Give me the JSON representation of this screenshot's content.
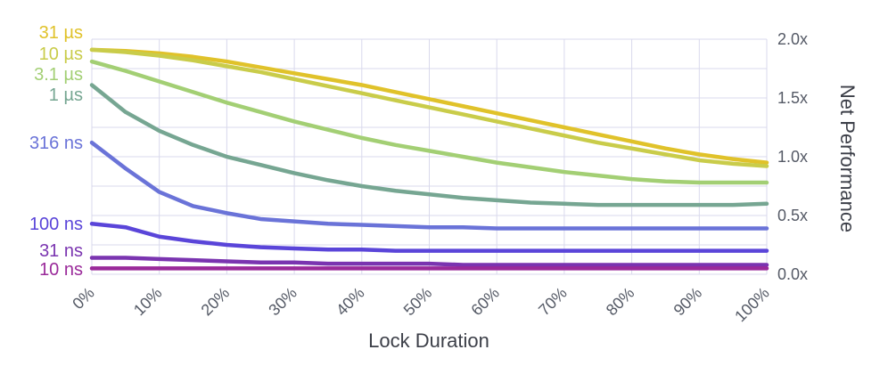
{
  "chart_data": {
    "type": "line",
    "title": "",
    "xlabel": "Lock Duration",
    "ylabel": "Net Performance",
    "x": [
      0,
      5,
      10,
      15,
      20,
      25,
      30,
      35,
      40,
      45,
      50,
      55,
      60,
      65,
      70,
      75,
      80,
      85,
      90,
      95,
      100
    ],
    "xticks": [
      "0%",
      "10%",
      "20%",
      "30%",
      "40%",
      "50%",
      "60%",
      "70%",
      "80%",
      "90%",
      "100%"
    ],
    "yticks": [
      "0.0x",
      "0.5x",
      "1.0x",
      "1.5x",
      "2.0x"
    ],
    "ylim": [
      0,
      2.0
    ],
    "xlim": [
      0,
      100
    ],
    "grid": true,
    "series": [
      {
        "name": "31 µs",
        "color": "#e0c22a",
        "values": [
          1.91,
          1.9,
          1.88,
          1.85,
          1.81,
          1.76,
          1.71,
          1.66,
          1.61,
          1.55,
          1.49,
          1.43,
          1.37,
          1.31,
          1.25,
          1.19,
          1.13,
          1.07,
          1.02,
          0.98,
          0.95
        ]
      },
      {
        "name": "10 µs",
        "color": "#c9cc4a",
        "values": [
          1.91,
          1.89,
          1.86,
          1.82,
          1.77,
          1.72,
          1.66,
          1.6,
          1.54,
          1.48,
          1.42,
          1.36,
          1.3,
          1.24,
          1.18,
          1.12,
          1.07,
          1.02,
          0.97,
          0.94,
          0.92
        ]
      },
      {
        "name": "3.1 µs",
        "color": "#a3cf74",
        "values": [
          1.81,
          1.73,
          1.64,
          1.55,
          1.46,
          1.38,
          1.3,
          1.23,
          1.16,
          1.1,
          1.05,
          1.0,
          0.95,
          0.91,
          0.87,
          0.84,
          0.81,
          0.79,
          0.78,
          0.78,
          0.78
        ]
      },
      {
        "name": "1 µs",
        "color": "#76a692",
        "values": [
          1.61,
          1.38,
          1.22,
          1.1,
          1.0,
          0.93,
          0.86,
          0.8,
          0.75,
          0.71,
          0.68,
          0.65,
          0.63,
          0.61,
          0.6,
          0.59,
          0.59,
          0.59,
          0.59,
          0.59,
          0.6
        ]
      },
      {
        "name": "316 ns",
        "color": "#6a73d8",
        "values": [
          1.12,
          0.9,
          0.7,
          0.58,
          0.52,
          0.47,
          0.45,
          0.43,
          0.42,
          0.41,
          0.4,
          0.4,
          0.39,
          0.39,
          0.39,
          0.39,
          0.39,
          0.39,
          0.39,
          0.39,
          0.39
        ]
      },
      {
        "name": "100 ns",
        "color": "#5a45d9",
        "values": [
          0.43,
          0.4,
          0.32,
          0.28,
          0.25,
          0.23,
          0.22,
          0.21,
          0.21,
          0.2,
          0.2,
          0.2,
          0.2,
          0.2,
          0.2,
          0.2,
          0.2,
          0.2,
          0.2,
          0.2,
          0.2
        ]
      },
      {
        "name": "31 ns",
        "color": "#7a34b0",
        "values": [
          0.14,
          0.14,
          0.13,
          0.12,
          0.11,
          0.1,
          0.1,
          0.09,
          0.09,
          0.09,
          0.09,
          0.08,
          0.08,
          0.08,
          0.08,
          0.08,
          0.08,
          0.08,
          0.08,
          0.08,
          0.08
        ]
      },
      {
        "name": "10 ns",
        "color": "#9a2a9a",
        "values": [
          0.05,
          0.05,
          0.05,
          0.05,
          0.05,
          0.05,
          0.05,
          0.05,
          0.05,
          0.05,
          0.05,
          0.05,
          0.05,
          0.05,
          0.05,
          0.05,
          0.05,
          0.05,
          0.05,
          0.05,
          0.05
        ]
      }
    ],
    "series_labels": [
      {
        "text": "31 µs",
        "color": "#e0c22a"
      },
      {
        "text": "10 µs",
        "color": "#c9cc4a"
      },
      {
        "text": "3.1 µs",
        "color": "#a3cf74"
      },
      {
        "text": "1 µs",
        "color": "#76a692"
      },
      {
        "text": "316 ns",
        "color": "#6a73d8"
      },
      {
        "text": "100 ns",
        "color": "#5a45d9"
      },
      {
        "text": "31 ns",
        "color": "#7a34b0"
      },
      {
        "text": "10 ns",
        "color": "#9a2a9a"
      }
    ]
  }
}
